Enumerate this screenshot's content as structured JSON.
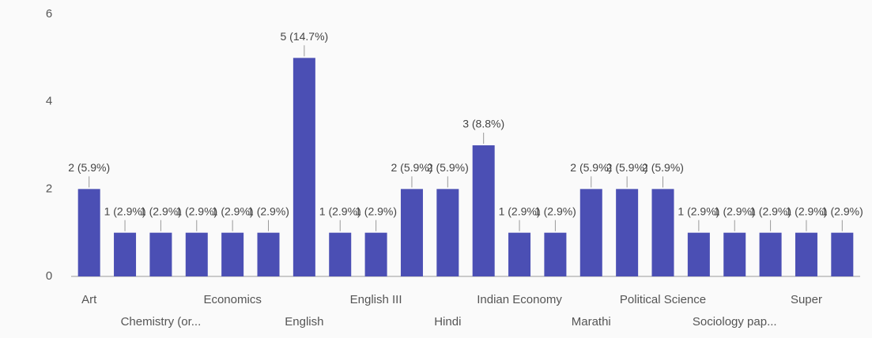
{
  "chart_data": {
    "type": "bar",
    "categories": [
      "Art",
      null,
      "Chemistry (or...",
      null,
      "Economics",
      null,
      "English",
      null,
      "English III",
      null,
      "Hindi",
      null,
      "Indian Economy",
      null,
      "Marathi",
      null,
      "Political Science",
      null,
      "Sociology pap...",
      null,
      "Super",
      null
    ],
    "values": [
      2,
      1,
      1,
      1,
      1,
      1,
      5,
      1,
      1,
      2,
      2,
      3,
      1,
      1,
      2,
      2,
      2,
      1,
      1,
      1,
      1,
      1
    ],
    "value_labels": [
      "2 (5.9%)",
      "1 (2.9%)",
      "1 (2.9%)",
      "1 (2.9%)",
      "1 (2.9%)",
      "1 (2.9%)",
      "5 (14.7%)",
      "1 (2.9%)",
      "1 (2.9%)",
      "2 (5.9%)",
      "2 (5.9%)",
      "3 (8.8%)",
      "1 (2.9%)",
      "1 (2.9%)",
      "2 (5.9%)",
      "2 (5.9%)",
      "2 (5.9%)",
      "1 (2.9%)",
      "1 (2.9%)",
      "1 (2.9%)",
      "1 (2.9%)",
      "1 (2.9%)"
    ],
    "color": "#4b4fb4",
    "ylim": [
      0,
      6
    ],
    "yticks": [
      0,
      2,
      4,
      6
    ],
    "grid": false
  }
}
